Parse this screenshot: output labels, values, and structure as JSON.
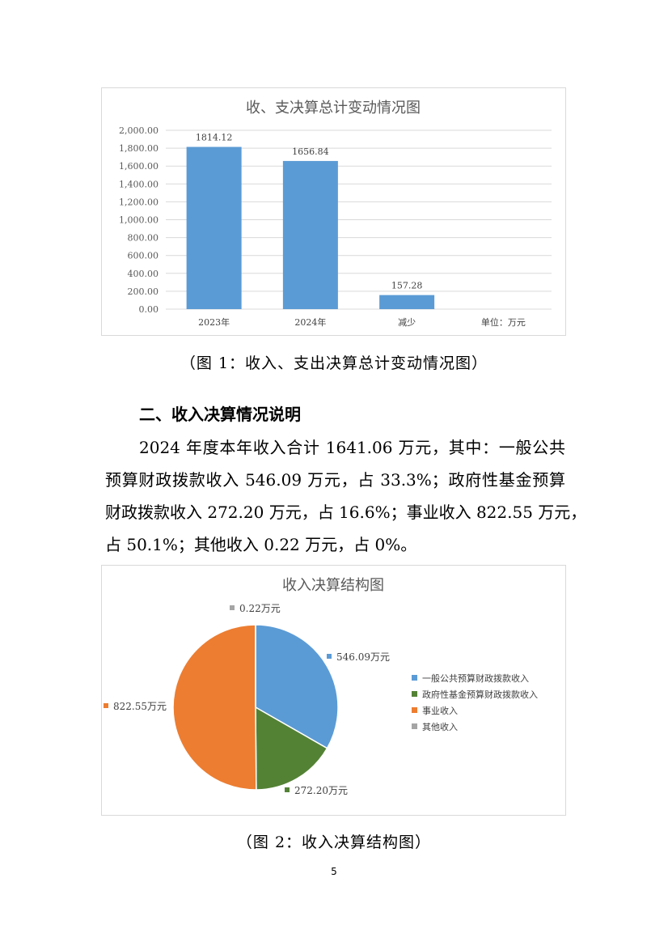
{
  "chart_data": [
    {
      "type": "bar",
      "title": "收、支决算总计变动情况图",
      "categories": [
        "2023年",
        "2024年",
        "减少",
        "单位：万元"
      ],
      "values": [
        1814.12,
        1656.84,
        157.28,
        null
      ],
      "data_labels": [
        "1814.12",
        "1656.84",
        "157.28",
        ""
      ],
      "ylim": [
        0,
        2000
      ],
      "yticks": [
        "0.00",
        "200.00",
        "400.00",
        "600.00",
        "800.00",
        "1,000.00",
        "1,200.00",
        "1,400.00",
        "1,600.00",
        "1,800.00",
        "2,000.00"
      ],
      "grid": true,
      "color": "#5b9bd5"
    },
    {
      "type": "pie",
      "title": "收入决算结构图",
      "categories": [
        "一般公共预算财政拨款收入",
        "政府性基金预算财政拨款收入",
        "事业收入",
        "其他收入"
      ],
      "values": [
        546.09,
        272.2,
        822.55,
        0.22
      ],
      "data_labels": [
        "546.09万元",
        "272.20万元",
        "822.55万元",
        "0.22万元"
      ],
      "colors": [
        "#5b9bd5",
        "#548235",
        "#ed7d31",
        "#a5a5a5"
      ],
      "legend": "right"
    }
  ],
  "captions": {
    "fig1": "（图 1：收入、支出决算总计变动情况图）",
    "fig2": "（图 2：收入决算结构图）"
  },
  "section": {
    "heading": "二、收入决算情况说明",
    "lines": [
      "2024 年度本年收入合计 1641.06 万元，其中：一般公共",
      "预算财政拨款收入 546.09 万元，占 33.3%；政府性基金预算",
      "财政拨款收入 272.20 万元，占 16.6%；事业收入 822.55 万元，",
      "占 50.1%；其他收入 0.22 万元，占 0%。"
    ]
  },
  "page_number": "5"
}
